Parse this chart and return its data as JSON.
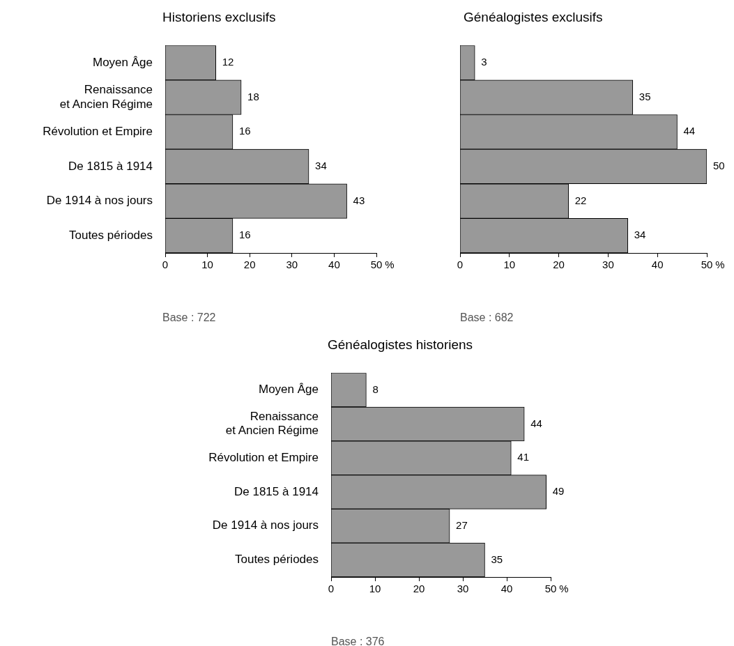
{
  "chart_data": [
    {
      "type": "bar",
      "orientation": "horizontal",
      "title": "Historiens exclusifs",
      "categories": [
        "Moyen Âge",
        "Renaissance\net Ancien Régime",
        "Révolution et Empire",
        "De 1815 à 1914",
        "De 1914 à nos jours",
        "Toutes périodes"
      ],
      "values": [
        12,
        18,
        16,
        34,
        43,
        16
      ],
      "color": "#999999",
      "xlim": [
        0,
        50
      ],
      "xticks": [
        0,
        10,
        20,
        30,
        40,
        50
      ],
      "xlabel": "%",
      "data_labels": true,
      "grid": false,
      "annotations": [
        "Base : 722"
      ]
    },
    {
      "type": "bar",
      "orientation": "horizontal",
      "title": "Généalogistes exclusifs",
      "categories": [
        null,
        null,
        null,
        null,
        null,
        null
      ],
      "values": [
        3,
        35,
        44,
        50,
        22,
        34
      ],
      "color": "#999999",
      "xlim": [
        0,
        50
      ],
      "xticks": [
        0,
        10,
        20,
        30,
        40,
        50
      ],
      "xlabel": "%",
      "data_labels": true,
      "grid": false,
      "annotations": [
        "Base : 682"
      ]
    },
    {
      "type": "bar",
      "orientation": "horizontal",
      "title": "Généalogistes historiens",
      "categories": [
        "Moyen Âge",
        "Renaissance\net Ancien Régime",
        "Révolution et Empire",
        "De 1815 à 1914",
        "De 1914 à nos jours",
        "Toutes périodes"
      ],
      "values": [
        8,
        44,
        41,
        49,
        27,
        35
      ],
      "color": "#999999",
      "xlim": [
        0,
        50
      ],
      "xticks": [
        0,
        10,
        20,
        30,
        40,
        50
      ],
      "xlabel": "%",
      "data_labels": true,
      "grid": false,
      "annotations": [
        "Base : 376"
      ]
    }
  ]
}
